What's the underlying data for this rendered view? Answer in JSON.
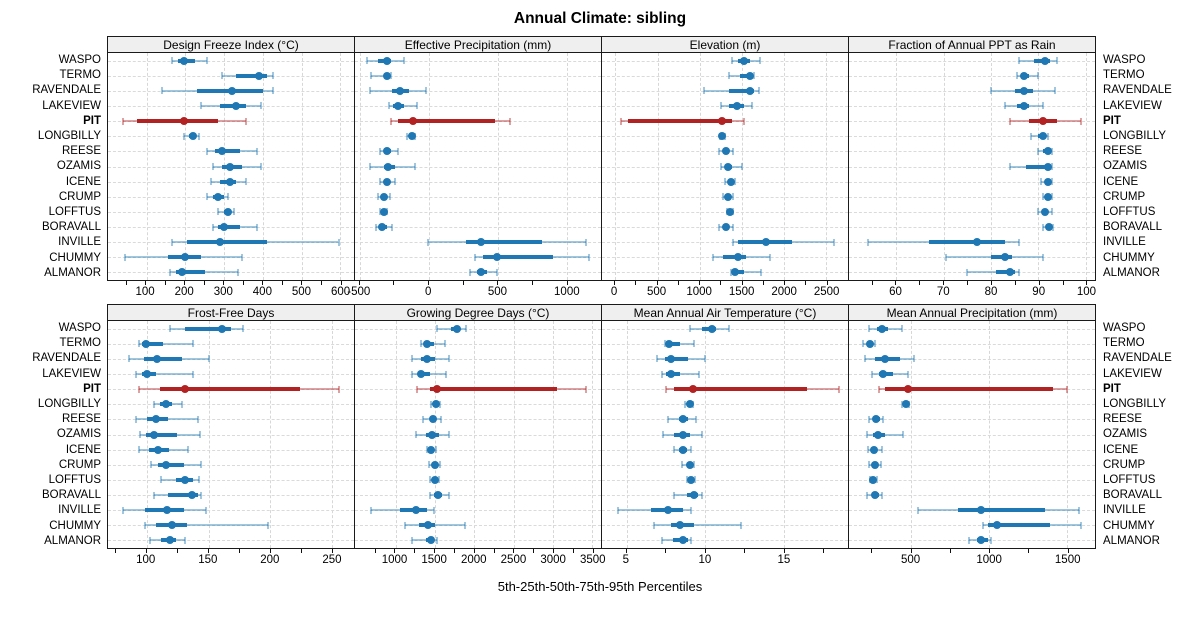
{
  "title": "Annual Climate: sibling",
  "caption": "5th-25th-50th-75th-95th Percentiles",
  "percentiles": [
    "5th",
    "25th",
    "50th",
    "75th",
    "95th"
  ],
  "sites": [
    "WASPO",
    "TERMO",
    "RAVENDALE",
    "LAKEVIEW",
    "PIT",
    "LONGBILLY",
    "REESE",
    "OZAMIS",
    "ICENE",
    "CRUMP",
    "LOFFTUS",
    "BORAVALL",
    "INVILLE",
    "CHUMMY",
    "ALMANOR"
  ],
  "highlight_site": "PIT",
  "colors": {
    "series": "#1f78b4",
    "highlight": "#b22222",
    "whisker_alpha": 0.42,
    "grid": "#d7d7d7",
    "panel_border": "#1a1a1a",
    "strip_bg": "#efefef"
  },
  "chart_data": [
    {
      "type": "dot-whisker",
      "title": "Design Freeze Index (°C)",
      "xlim": [
        0,
        635
      ],
      "ticks": [
        100,
        200,
        300,
        400,
        500,
        600
      ],
      "values": [
        [
          165,
          180,
          195,
          225,
          255
        ],
        [
          295,
          330,
          390,
          410,
          425
        ],
        [
          140,
          230,
          320,
          400,
          425
        ],
        [
          240,
          290,
          330,
          355,
          395
        ],
        [
          40,
          75,
          195,
          285,
          355
        ],
        [
          195,
          210,
          220,
          228,
          235
        ],
        [
          255,
          275,
          295,
          340,
          385
        ],
        [
          270,
          295,
          315,
          345,
          395
        ],
        [
          265,
          290,
          315,
          330,
          355
        ],
        [
          255,
          270,
          285,
          300,
          310
        ],
        [
          285,
          300,
          310,
          318,
          325
        ],
        [
          270,
          285,
          300,
          340,
          385
        ],
        [
          165,
          205,
          290,
          410,
          595
        ],
        [
          45,
          155,
          200,
          240,
          345
        ],
        [
          160,
          175,
          190,
          250,
          335
        ]
      ]
    },
    {
      "type": "dot-whisker",
      "title": "Effective Precipitation (mm)",
      "xlim": [
        -540,
        1250
      ],
      "ticks": [
        -500,
        0,
        500,
        1000
      ],
      "values": [
        [
          -450,
          -370,
          -310,
          -280,
          -180
        ],
        [
          -420,
          -330,
          -305,
          -290,
          -275
        ],
        [
          -430,
          -270,
          -210,
          -150,
          -20
        ],
        [
          -290,
          -260,
          -230,
          -180,
          -90
        ],
        [
          -280,
          -230,
          -120,
          480,
          590
        ],
        [
          -160,
          -140,
          -125,
          -110,
          -100
        ],
        [
          -360,
          -330,
          -310,
          -280,
          -230
        ],
        [
          -430,
          -330,
          -300,
          -250,
          -100
        ],
        [
          -360,
          -330,
          -310,
          -290,
          -250
        ],
        [
          -370,
          -345,
          -330,
          -310,
          -285
        ],
        [
          -355,
          -340,
          -330,
          -320,
          -310
        ],
        [
          -390,
          -360,
          -340,
          -310,
          -270
        ],
        [
          -10,
          270,
          380,
          820,
          1140
        ],
        [
          330,
          390,
          490,
          900,
          1160
        ],
        [
          300,
          350,
          380,
          420,
          490
        ]
      ]
    },
    {
      "type": "dot-whisker",
      "title": "Elevation (m)",
      "xlim": [
        -160,
        2760
      ],
      "ticks": [
        0,
        500,
        1000,
        1500,
        2000,
        2500
      ],
      "values": [
        [
          1380,
          1450,
          1530,
          1600,
          1720
        ],
        [
          1350,
          1480,
          1600,
          1630,
          1650
        ],
        [
          1050,
          1350,
          1600,
          1650,
          1700
        ],
        [
          1250,
          1350,
          1440,
          1530,
          1620
        ],
        [
          60,
          150,
          1260,
          1380,
          1530
        ],
        [
          1240,
          1255,
          1270,
          1285,
          1300
        ],
        [
          1230,
          1280,
          1310,
          1350,
          1400
        ],
        [
          1250,
          1300,
          1330,
          1380,
          1500
        ],
        [
          1300,
          1340,
          1370,
          1395,
          1420
        ],
        [
          1280,
          1310,
          1330,
          1355,
          1390
        ],
        [
          1320,
          1350,
          1365,
          1380,
          1400
        ],
        [
          1230,
          1280,
          1310,
          1350,
          1390
        ],
        [
          1390,
          1450,
          1790,
          2100,
          2590
        ],
        [
          1160,
          1280,
          1450,
          1550,
          1840
        ],
        [
          1370,
          1390,
          1420,
          1530,
          1730
        ]
      ]
    },
    {
      "type": "dot-whisker",
      "title": "Fraction of Annual PPT as Rain",
      "xlim": [
        50,
        102
      ],
      "ticks": [
        60,
        70,
        80,
        90,
        100
      ],
      "values": [
        [
          86,
          89,
          91.5,
          92.5,
          94
        ],
        [
          85.5,
          86.5,
          87,
          88,
          90
        ],
        [
          80,
          85,
          87,
          89,
          93.5
        ],
        [
          83,
          85.5,
          87,
          88,
          91
        ],
        [
          84,
          88,
          91,
          94,
          99
        ],
        [
          88.5,
          90,
          91,
          91.5,
          92
        ],
        [
          90,
          91,
          92,
          92.5,
          93
        ],
        [
          84,
          87.5,
          92,
          92.5,
          93
        ],
        [
          90.5,
          91.5,
          92,
          92.5,
          93
        ],
        [
          91,
          91.5,
          92,
          92.5,
          93
        ],
        [
          90,
          91,
          91.5,
          92,
          93
        ],
        [
          91,
          91.8,
          92.3,
          92.8,
          93.2
        ],
        [
          54,
          67,
          77,
          83,
          86
        ],
        [
          70.5,
          80,
          83,
          84.5,
          91
        ],
        [
          75,
          81,
          84,
          85,
          86
        ]
      ]
    },
    {
      "type": "dot-whisker",
      "title": "Frost-Free Days",
      "xlim": [
        68,
        268
      ],
      "ticks": [
        100,
        150,
        200,
        250
      ],
      "values": [
        [
          118,
          131,
          161,
          168,
          178
        ],
        [
          93,
          96,
          99,
          113,
          137
        ],
        [
          85,
          97,
          108,
          128,
          150
        ],
        [
          91,
          96,
          100,
          107,
          137
        ],
        [
          93,
          110,
          131,
          224,
          256
        ],
        [
          105,
          110,
          115,
          120,
          128
        ],
        [
          91,
          100,
          107,
          117,
          141
        ],
        [
          94,
          99,
          105,
          124,
          143
        ],
        [
          93,
          101,
          109,
          118,
          133
        ],
        [
          103,
          109,
          115,
          130,
          144
        ],
        [
          111,
          123,
          131,
          137,
          142
        ],
        [
          105,
          117,
          136,
          141,
          144
        ],
        [
          80,
          98,
          116,
          130,
          148
        ],
        [
          98,
          107,
          120,
          132,
          198
        ],
        [
          102,
          111,
          118,
          123,
          131
        ]
      ]
    },
    {
      "type": "dot-whisker",
      "title": "Growing Degree Days (°C)",
      "xlim": [
        480,
        3610
      ],
      "ticks": [
        1000,
        1500,
        2000,
        2500,
        3000,
        3500
      ],
      "values": [
        [
          1520,
          1700,
          1780,
          1820,
          1890
        ],
        [
          1320,
          1370,
          1400,
          1490,
          1630
        ],
        [
          1210,
          1320,
          1390,
          1500,
          1680
        ],
        [
          1210,
          1280,
          1320,
          1430,
          1640
        ],
        [
          1270,
          1440,
          1520,
          3050,
          3420
        ],
        [
          1450,
          1490,
          1515,
          1540,
          1560
        ],
        [
          1350,
          1430,
          1470,
          1510,
          1570
        ],
        [
          1250,
          1380,
          1460,
          1550,
          1670
        ],
        [
          1390,
          1420,
          1450,
          1470,
          1510
        ],
        [
          1420,
          1470,
          1500,
          1530,
          1560
        ],
        [
          1440,
          1480,
          1500,
          1520,
          1545
        ],
        [
          1430,
          1490,
          1540,
          1590,
          1670
        ],
        [
          680,
          1050,
          1260,
          1390,
          1490
        ],
        [
          1120,
          1300,
          1410,
          1500,
          1880
        ],
        [
          1210,
          1380,
          1450,
          1490,
          1520
        ]
      ]
    },
    {
      "type": "dot-whisker",
      "title": "Mean Annual Air Temperature (°C)",
      "xlim": [
        3.4,
        19.1
      ],
      "ticks": [
        5,
        10,
        15
      ],
      "values": [
        [
          9.0,
          9.8,
          10.4,
          10.7,
          11.5
        ],
        [
          7.4,
          7.5,
          7.7,
          8.4,
          9.3
        ],
        [
          6.9,
          7.4,
          7.8,
          8.9,
          10.0
        ],
        [
          7.2,
          7.5,
          7.8,
          8.4,
          9.6
        ],
        [
          7.5,
          8.0,
          9.2,
          16.5,
          18.5
        ],
        [
          8.7,
          8.85,
          9.0,
          9.1,
          9.2
        ],
        [
          7.6,
          8.3,
          8.6,
          8.9,
          9.4
        ],
        [
          7.3,
          8.0,
          8.55,
          9.0,
          9.8
        ],
        [
          8.0,
          8.3,
          8.55,
          8.8,
          9.1
        ],
        [
          8.5,
          8.8,
          9.0,
          9.15,
          9.3
        ],
        [
          8.8,
          9.0,
          9.1,
          9.2,
          9.35
        ],
        [
          8.0,
          8.8,
          9.3,
          9.5,
          9.8
        ],
        [
          4.4,
          6.5,
          7.6,
          8.6,
          9.1
        ],
        [
          6.7,
          7.8,
          8.4,
          9.3,
          12.3
        ],
        [
          7.2,
          7.9,
          8.6,
          8.9,
          9.1
        ]
      ]
    },
    {
      "type": "dot-whisker",
      "title": "Mean Annual Precipitation (mm)",
      "xlim": [
        100,
        1680
      ],
      "ticks": [
        500,
        1000,
        1500
      ],
      "values": [
        [
          230,
          280,
          310,
          350,
          440
        ],
        [
          190,
          215,
          235,
          250,
          265
        ],
        [
          200,
          270,
          330,
          430,
          520
        ],
        [
          250,
          290,
          320,
          380,
          480
        ],
        [
          290,
          330,
          480,
          1410,
          1500
        ],
        [
          440,
          455,
          465,
          475,
          485
        ],
        [
          230,
          255,
          275,
          300,
          320
        ],
        [
          215,
          255,
          285,
          330,
          450
        ],
        [
          225,
          245,
          260,
          280,
          310
        ],
        [
          230,
          250,
          265,
          285,
          305
        ],
        [
          235,
          245,
          255,
          265,
          280
        ],
        [
          215,
          245,
          270,
          290,
          310
        ],
        [
          540,
          800,
          945,
          1360,
          1580
        ],
        [
          960,
          990,
          1050,
          1390,
          1590
        ],
        [
          870,
          920,
          950,
          990,
          1010
        ]
      ]
    }
  ]
}
